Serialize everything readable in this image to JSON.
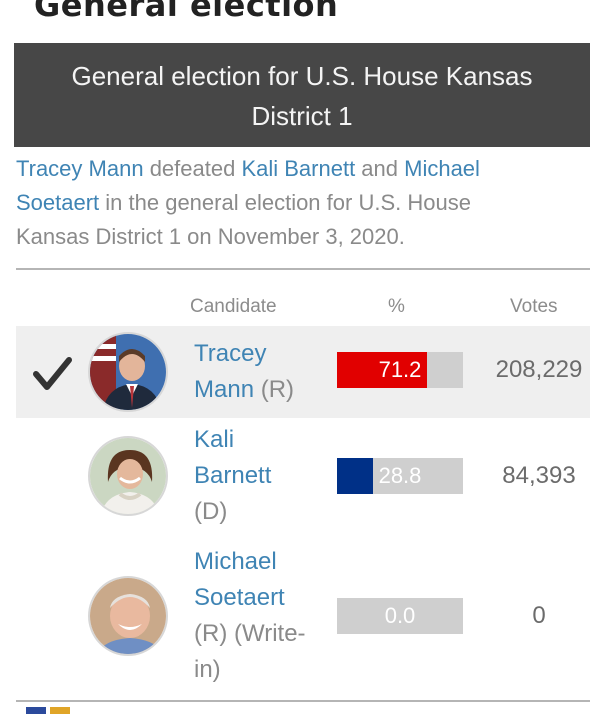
{
  "section_heading": "General election",
  "title": {
    "line1": "General election for U.S. House Kansas",
    "line2": "District 1"
  },
  "summary": {
    "winner": "Tracey Mann",
    "text1": " defeated ",
    "loser1": "Kali Barnett",
    "text2": " and ",
    "loser2_first": "Michael",
    "loser2_last": "Soetaert",
    "text3": " in the general election for U.S. House",
    "text4": "Kansas District 1 on November 3, 2020."
  },
  "table": {
    "headers": {
      "candidate": "Candidate",
      "percent": "%",
      "votes": "Votes"
    }
  },
  "candidates": [
    {
      "name_lines": [
        "Tracey",
        "Mann"
      ],
      "party": " (R)",
      "percent_label": "71.2",
      "percent": 71.2,
      "votes": "208,229",
      "winner": true,
      "bar_color": "#e10000"
    },
    {
      "name_lines": [
        "Kali",
        "Barnett"
      ],
      "party": "(D)",
      "percent_label": "28.8",
      "percent": 28.8,
      "votes": "84,393",
      "winner": false,
      "bar_color": "#003087"
    },
    {
      "name_lines": [
        "Michael",
        "Soetaert"
      ],
      "party_lines": [
        "(R) (Write-",
        "in)"
      ],
      "percent_label": "0.0",
      "percent": 0.0,
      "votes": "0",
      "winner": false,
      "bar_color": "#c9c9c9"
    }
  ],
  "colors": {
    "link": "#3f84b4",
    "header_bg": "#474747",
    "winner_row_bg": "#efefef",
    "republican": "#e10000",
    "democrat": "#003087"
  },
  "icons": [
    "checkmark-icon"
  ]
}
